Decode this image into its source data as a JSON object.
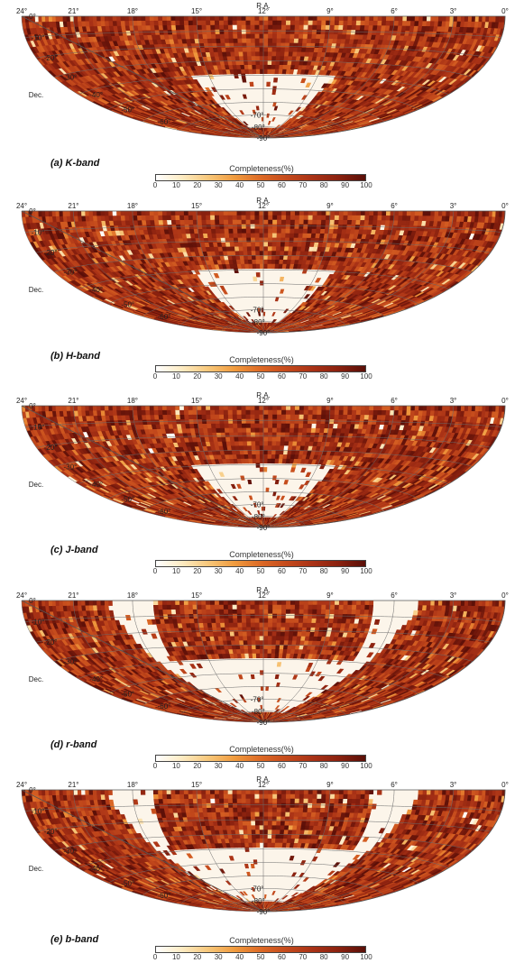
{
  "colors": {
    "empty": "#fcf5ea",
    "graticule": "#6a6a6a",
    "colormap": [
      "#ffffff",
      "#fdebc2",
      "#f7c77a",
      "#f09b3e",
      "#dd6a26",
      "#c44a1c",
      "#a93216",
      "#8a210f",
      "#5a0f08"
    ]
  },
  "axes": {
    "ra_title": "R.A.",
    "dec_title": "Dec.",
    "ra_labels": [
      "24°",
      "21°",
      "18°",
      "15°",
      "12°",
      "9°",
      "6°",
      "3°",
      "0°"
    ],
    "dec_labels": [
      "0°",
      "-10°",
      "-20°",
      "-30°",
      "-40°",
      "-50°",
      "-60°",
      "-70°",
      "-80°",
      "-90°"
    ]
  },
  "colorbar": {
    "title": "Completeness(%)",
    "ticks": [
      "0",
      "10",
      "20",
      "30",
      "40",
      "50",
      "60",
      "70",
      "80",
      "90",
      "100"
    ]
  },
  "panels": [
    {
      "caption": "(a) K-band",
      "band": "K"
    },
    {
      "caption": "(b) H-band",
      "band": "H"
    },
    {
      "caption": "(c) J-band",
      "band": "J"
    },
    {
      "caption": "(d) r-band",
      "band": "r"
    },
    {
      "caption": "(e) b-band",
      "band": "b"
    }
  ]
}
